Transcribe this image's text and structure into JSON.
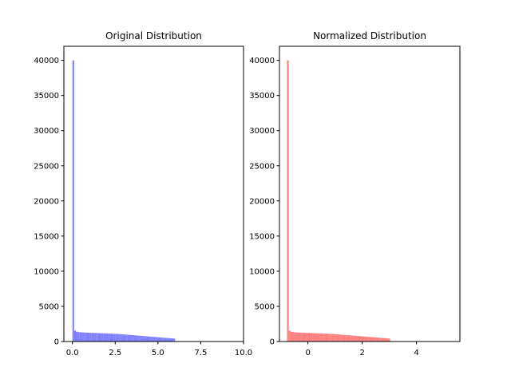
{
  "chart_data": [
    {
      "type": "bar",
      "subtype": "histogram",
      "title": "Original Distribution",
      "xlabel": "",
      "ylabel": "",
      "color": "#7f7fff",
      "xlim": [
        -0.5,
        10
      ],
      "ylim": [
        0,
        42000
      ],
      "xticks": [
        0.0,
        2.5,
        5.0,
        7.5,
        10.0
      ],
      "xtick_labels": [
        "0.0",
        "2.5",
        "5.0",
        "7.5",
        "10.0"
      ],
      "yticks": [
        0,
        5000,
        10000,
        15000,
        20000,
        25000,
        30000,
        35000,
        40000
      ],
      "ytick_labels": [
        "0",
        "5000",
        "10000",
        "15000",
        "20000",
        "25000",
        "30000",
        "35000",
        "40000"
      ],
      "bin_start": 0.0,
      "bin_width": 0.1,
      "values": [
        40000,
        1550,
        1400,
        1350,
        1320,
        1300,
        1280,
        1270,
        1260,
        1250,
        1240,
        1230,
        1220,
        1210,
        1200,
        1190,
        1180,
        1170,
        1160,
        1150,
        1140,
        1130,
        1120,
        1110,
        1100,
        1090,
        1080,
        1060,
        1040,
        1020,
        1000,
        980,
        960,
        940,
        920,
        900,
        880,
        860,
        840,
        820,
        800,
        780,
        760,
        740,
        720,
        700,
        680,
        660,
        640,
        620,
        600,
        580,
        560,
        540,
        520,
        500,
        480,
        460,
        440,
        420
      ]
    },
    {
      "type": "bar",
      "subtype": "histogram",
      "title": "Normalized Distribution",
      "xlabel": "",
      "ylabel": "",
      "color": "#ff7f7f",
      "xlim": [
        -1.05,
        5.6
      ],
      "ylim": [
        0,
        42000
      ],
      "xticks": [
        0,
        2,
        4
      ],
      "xtick_labels": [
        "0",
        "2",
        "4"
      ],
      "yticks": [
        0,
        5000,
        10000,
        15000,
        20000,
        25000,
        30000,
        35000,
        40000
      ],
      "ytick_labels": [
        "0",
        "5000",
        "10000",
        "15000",
        "20000",
        "25000",
        "30000",
        "35000",
        "40000"
      ],
      "bin_start": -0.77,
      "bin_width": 0.0633,
      "values": [
        40000,
        1550,
        1400,
        1350,
        1320,
        1300,
        1280,
        1270,
        1260,
        1250,
        1240,
        1230,
        1220,
        1210,
        1200,
        1190,
        1180,
        1170,
        1160,
        1150,
        1140,
        1130,
        1120,
        1110,
        1100,
        1090,
        1080,
        1060,
        1040,
        1020,
        1000,
        980,
        960,
        940,
        920,
        900,
        880,
        860,
        840,
        820,
        800,
        780,
        760,
        740,
        720,
        700,
        680,
        660,
        640,
        620,
        600,
        580,
        560,
        540,
        520,
        500,
        480,
        460,
        440,
        420
      ]
    }
  ]
}
